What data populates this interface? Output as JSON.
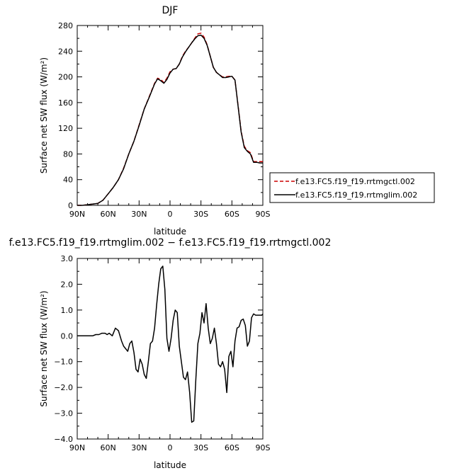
{
  "chart_data": [
    {
      "type": "line",
      "title": "DJF",
      "xlabel": "latitude",
      "ylabel": "Surface net SW flux (W/m²)",
      "xlim": [
        -90,
        90
      ],
      "ylim": [
        0,
        280
      ],
      "x_ticks": [
        -90,
        -60,
        -30,
        0,
        30,
        60,
        90
      ],
      "x_tick_labels": [
        "90N",
        "60N",
        "30N",
        "0",
        "30S",
        "60S",
        "90S"
      ],
      "y_ticks": [
        0,
        40,
        80,
        120,
        160,
        200,
        240,
        280
      ],
      "y_tick_labels": [
        "0",
        "40",
        "80",
        "120",
        "160",
        "200",
        "240",
        "280"
      ],
      "legend_position": "right",
      "series": [
        {
          "name": "f.e13.FC5.f19_f19.rrtmgctl.002",
          "color": "#cc0000",
          "dash": "dashed",
          "x": [
            -90,
            -85,
            -80,
            -75,
            -70,
            -65,
            -60,
            -55,
            -50,
            -45,
            -40,
            -35,
            -30,
            -25,
            -20,
            -15,
            -12,
            -9,
            -6,
            -3,
            0,
            3,
            6,
            9,
            12,
            15,
            18,
            21,
            24,
            27,
            30,
            33,
            36,
            39,
            42,
            45,
            48,
            51,
            54,
            57,
            60,
            63,
            66,
            69,
            72,
            75,
            78,
            81,
            84,
            87,
            90
          ],
          "y": [
            0,
            0,
            1,
            2,
            3,
            8,
            18,
            28,
            40,
            58,
            80,
            100,
            125,
            150,
            170,
            190,
            198,
            196,
            191,
            198,
            208,
            212,
            213,
            220,
            232,
            240,
            246,
            253,
            260,
            267,
            268,
            262,
            250,
            232,
            215,
            207,
            203,
            200,
            200,
            201,
            201,
            195,
            155,
            115,
            92,
            85,
            82,
            68,
            68,
            68,
            68
          ]
        },
        {
          "name": "f.e13.FC5.f19_f19.rrtmglim.002",
          "color": "#000000",
          "dash": "solid",
          "x": [
            -90,
            -85,
            -80,
            -75,
            -70,
            -65,
            -60,
            -55,
            -50,
            -45,
            -40,
            -35,
            -30,
            -25,
            -20,
            -15,
            -12,
            -9,
            -6,
            -3,
            0,
            3,
            6,
            9,
            12,
            15,
            18,
            21,
            24,
            27,
            30,
            33,
            36,
            39,
            42,
            45,
            48,
            51,
            54,
            57,
            60,
            63,
            66,
            69,
            72,
            75,
            78,
            81,
            84,
            87,
            90
          ],
          "y": [
            0,
            0,
            1,
            2,
            3,
            8,
            18,
            28,
            40,
            57,
            80,
            100,
            124,
            150,
            169,
            189,
            197,
            194,
            190,
            196,
            206,
            212,
            213,
            220,
            231,
            239,
            246,
            253,
            259,
            264,
            265,
            260,
            249,
            232,
            215,
            207,
            203,
            199,
            199,
            200,
            201,
            195,
            154,
            114,
            90,
            84,
            80,
            67,
            67,
            66,
            66
          ]
        }
      ]
    },
    {
      "type": "line",
      "title": "f.e13.FC5.f19_f19.rrtmglim.002 − f.e13.FC5.f19_f19.rrtmgctl.002",
      "xlabel": "latitude",
      "ylabel": "Surface net SW flux (W/m²)",
      "xlim": [
        -90,
        90
      ],
      "ylim": [
        -4,
        3
      ],
      "x_ticks": [
        -90,
        -60,
        -30,
        0,
        30,
        60,
        90
      ],
      "x_tick_labels": [
        "90N",
        "60N",
        "30N",
        "0",
        "30S",
        "60S",
        "90S"
      ],
      "y_ticks": [
        -4,
        -3,
        -2,
        -1,
        0,
        1,
        2,
        3
      ],
      "y_tick_labels": [
        "−4.0",
        "−3.0",
        "−2.0",
        "−1.0",
        "0.0",
        "1.0",
        "2.0",
        "3.0"
      ],
      "series": [
        {
          "color": "#000000",
          "dash": "solid",
          "x": [
            -90,
            -85,
            -80,
            -75,
            -72,
            -69,
            -66,
            -63,
            -61,
            -59,
            -56,
            -53,
            -50,
            -47,
            -45,
            -43,
            -41,
            -39,
            -37,
            -35,
            -33,
            -31,
            -29,
            -27,
            -25,
            -23,
            -21,
            -19,
            -17,
            -15,
            -13,
            -11,
            -9,
            -7,
            -5,
            -3,
            -1,
            1,
            3,
            5,
            7,
            9,
            11,
            13,
            15,
            17,
            19,
            21,
            23,
            25,
            27,
            29,
            31,
            33,
            35,
            37,
            39,
            41,
            43,
            45,
            47,
            49,
            51,
            53,
            55,
            57,
            59,
            61,
            63,
            65,
            67,
            69,
            71,
            73,
            75,
            77,
            79,
            81,
            83,
            85,
            87,
            89,
            90
          ],
          "y": [
            0,
            0,
            0,
            0,
            0.05,
            0.05,
            0.1,
            0.1,
            0.05,
            0.1,
            0.0,
            0.3,
            0.2,
            -0.2,
            -0.4,
            -0.5,
            -0.6,
            -0.3,
            -0.2,
            -0.65,
            -1.3,
            -1.4,
            -0.9,
            -1.1,
            -1.5,
            -1.65,
            -1.0,
            -0.3,
            -0.2,
            0.3,
            1.2,
            2.0,
            2.6,
            2.7,
            1.8,
            -0.1,
            -0.6,
            -0.1,
            0.6,
            1.0,
            0.9,
            -0.4,
            -1.0,
            -1.6,
            -1.7,
            -1.4,
            -2.2,
            -3.35,
            -3.3,
            -1.7,
            -0.3,
            0.1,
            0.9,
            0.5,
            1.25,
            0.3,
            -0.3,
            -0.1,
            0.3,
            -0.3,
            -1.1,
            -1.2,
            -1.0,
            -1.3,
            -2.2,
            -0.8,
            -0.6,
            -1.2,
            -0.2,
            0.3,
            0.35,
            0.6,
            0.65,
            0.4,
            -0.4,
            -0.2,
            0.7,
            0.85,
            0.8,
            0.8,
            0.8,
            0.8,
            0.85
          ]
        }
      ]
    }
  ]
}
